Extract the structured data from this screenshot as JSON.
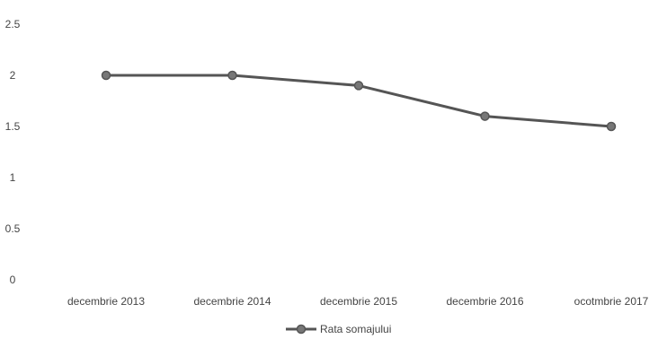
{
  "chart_data": {
    "type": "line",
    "categories": [
      "decembrie 2013",
      "decembrie 2014",
      "decembrie 2015",
      "decembrie 2016",
      "ocotmbrie 2017"
    ],
    "series": [
      {
        "name": "Rata somajului",
        "values": [
          2.0,
          2.0,
          1.9,
          1.6,
          1.5
        ]
      }
    ],
    "y_ticks": [
      "0",
      "0.5",
      "1",
      "1.5",
      "2",
      "2.5"
    ],
    "ylim": [
      0,
      2.5
    ],
    "grid": false,
    "legend_position": "bottom",
    "colors": {
      "line": "#555555",
      "marker": "#777777",
      "text": "#444444"
    }
  }
}
